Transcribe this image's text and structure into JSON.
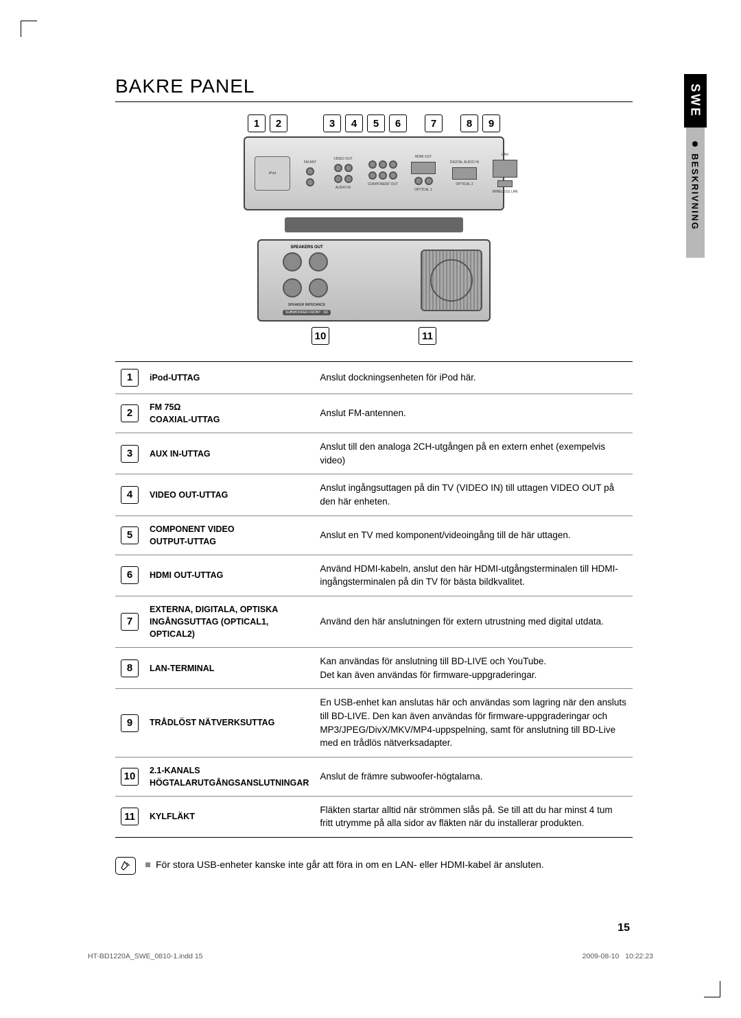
{
  "page": {
    "title": "BAKRE PANEL",
    "side_lang": "SWE",
    "side_section": "BESKRIVNING",
    "page_number": "15",
    "footer_file": "HT-BD1220A_SWE_0810-1.indd   15",
    "footer_date": "2009-08-10",
    "footer_time": "10:22:23"
  },
  "diagram": {
    "top_labels": {
      "fm_ant": "FM ANT",
      "video_out": "VIDEO OUT",
      "hdmi_out": "HDMI OUT",
      "digital_audio_in": "DIGITAL AUDIO IN",
      "lan": "LAN",
      "optical1": "OPTICAL 1",
      "optical2": "OPTICAL 2",
      "ipod": "iPod",
      "audio_in": "AUDIO IN",
      "component_out": "COMPONENT OUT",
      "wireless_lan": "WIRELESS LAN"
    },
    "bottom_labels": {
      "speakers_out": "SPEAKERS OUT",
      "speaker_impedance": "SPEAKER IMPEDANCE",
      "subwoofer_front": "SUBWOOFER FRONT : 3Ω"
    },
    "callouts_top": [
      "1",
      "2",
      "3",
      "4",
      "5",
      "6",
      "7",
      "8",
      "9"
    ],
    "callouts_bottom": [
      "10",
      "11"
    ]
  },
  "rows": [
    {
      "num": "1",
      "label": "iPod-UTTAG",
      "desc": "Anslut dockningsenheten för iPod här."
    },
    {
      "num": "2",
      "label": "FM 75Ω\nCOAXIAL-UTTAG",
      "desc": "Anslut FM-antennen."
    },
    {
      "num": "3",
      "label": "AUX IN-UTTAG",
      "desc": "Anslut till den analoga 2CH-utgången på en extern enhet (exempelvis video)"
    },
    {
      "num": "4",
      "label": "VIDEO OUT-UTTAG",
      "desc": "Anslut ingångsuttagen på din TV (VIDEO IN) till uttagen VIDEO OUT på den här enheten."
    },
    {
      "num": "5",
      "label": "COMPONENT VIDEO\nOUTPUT-UTTAG",
      "desc": "Anslut en TV med komponent/videoingång till de här uttagen."
    },
    {
      "num": "6",
      "label": "HDMI OUT-UTTAG",
      "desc": "Använd HDMI-kabeln, anslut den här HDMI-utgångsterminalen till HDMI-ingångsterminalen på din TV för bästa bildkvalitet."
    },
    {
      "num": "7",
      "label": "EXTERNA, DIGITALA, OPTISKA\nINGÅNGSUTTAG (OPTICAL1, OPTICAL2)",
      "desc": "Använd den här anslutningen för extern utrustning med digital utdata."
    },
    {
      "num": "8",
      "label": "LAN-TERMINAL",
      "desc": "Kan användas för anslutning till BD-LIVE och YouTube.\nDet kan även användas för firmware-uppgraderingar."
    },
    {
      "num": "9",
      "label": "TRÅDLÖST NÄTVERKSUTTAG",
      "desc": "En USB-enhet kan anslutas här och användas som lagring när den ansluts till BD-LIVE. Den kan även användas för firmware-uppgraderingar och MP3/JPEG/DivX/MKV/MP4-uppspelning, samt för anslutning till BD-Live med en trådlös nätverksadapter."
    },
    {
      "num": "10",
      "label": "2.1-KANALS\nHÖGTALARUTGÅNGSANSLUTNINGAR",
      "desc": "Anslut de främre subwoofer-högtalarna."
    },
    {
      "num": "11",
      "label": "KYLFLÄKT",
      "desc": "Fläkten startar alltid när strömmen slås på. Se till att du har minst 4 tum fritt utrymme på alla sidor av fläkten när du installerar produkten."
    }
  ],
  "note": {
    "text": "För stora USB-enheter kanske inte går att föra in om en LAN- eller HDMI-kabel är ansluten."
  },
  "style": {
    "page_bg": "#ffffff",
    "text_color": "#000000",
    "border_color": "#888888",
    "title_fontsize": 28,
    "body_fontsize": 13.5,
    "label_fontsize": 12.5
  }
}
